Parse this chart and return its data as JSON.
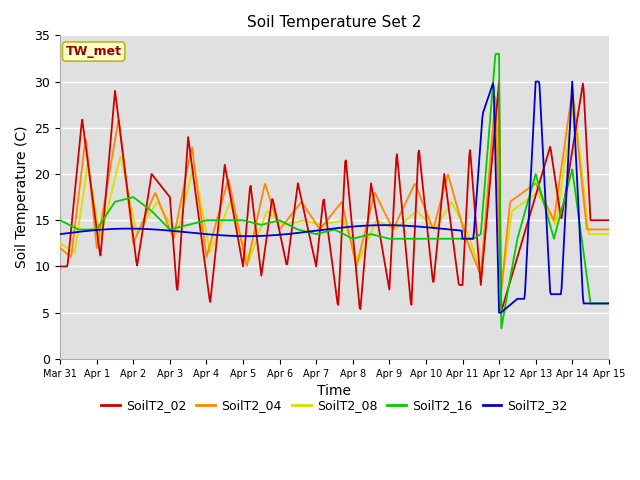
{
  "title": "Soil Temperature Set 2",
  "xlabel": "Time",
  "ylabel": "Soil Temperature (C)",
  "ylim": [
    0,
    35
  ],
  "xlim": [
    0,
    15
  ],
  "annotation": "TW_met",
  "series_colors": {
    "SoilT2_02": "#cc0000",
    "SoilT2_04": "#ff8800",
    "SoilT2_08": "#dddd00",
    "SoilT2_16": "#00cc00",
    "SoilT2_32": "#0000cc"
  },
  "yticks": [
    0,
    5,
    10,
    15,
    20,
    25,
    30,
    35
  ],
  "xtick_labels": [
    "Mar 31",
    "Apr 1",
    "Apr 2",
    "Apr 3",
    "Apr 4",
    "Apr 5",
    "Apr 6",
    "Apr 7",
    "Apr 8",
    "Apr 9",
    "Apr 10",
    "Apr 11",
    "Apr 12",
    "Apr 13",
    "Apr 14",
    "Apr 15"
  ],
  "bg_color": "#e0e0e0",
  "title_fontsize": 11,
  "axis_fontsize": 9,
  "legend_fontsize": 9
}
